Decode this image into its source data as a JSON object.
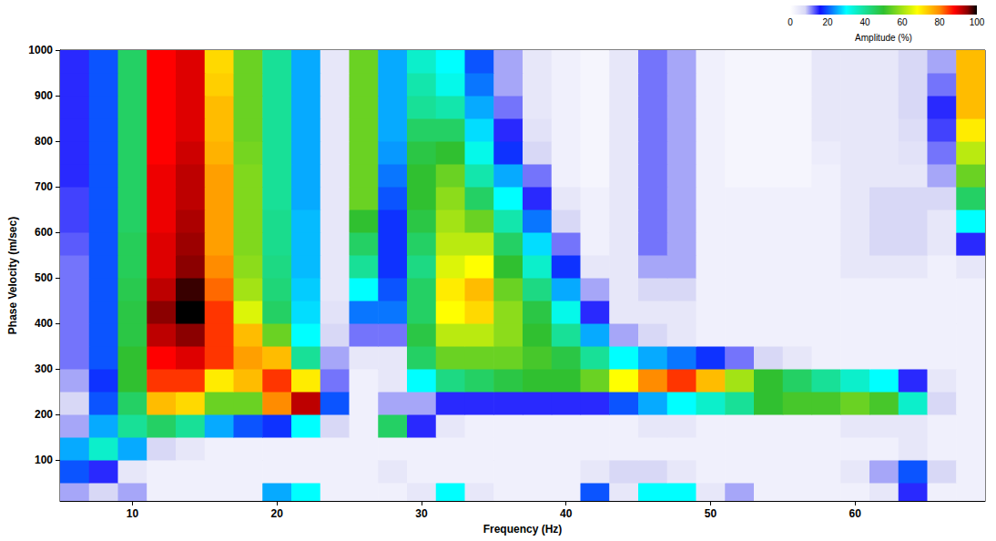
{
  "chart_data": {
    "type": "heatmap",
    "x_label": "Frequency (Hz)",
    "y_label": "Phase Velocity (m/sec)",
    "x": [
      6,
      8,
      10,
      12,
      14,
      16,
      18,
      20,
      22,
      24,
      26,
      28,
      30,
      32,
      34,
      36,
      38,
      40,
      42,
      44,
      46,
      48,
      50,
      52,
      54,
      56,
      58,
      60,
      62,
      64,
      66,
      68
    ],
    "y": [
      25,
      75,
      125,
      175,
      225,
      275,
      325,
      375,
      425,
      475,
      525,
      575,
      625,
      675,
      725,
      775,
      825,
      875,
      925,
      975
    ],
    "values": [
      [
        10,
        8,
        10,
        3,
        3,
        3,
        3,
        25,
        30,
        3,
        3,
        3,
        5,
        30,
        5,
        3,
        3,
        3,
        20,
        5,
        30,
        30,
        5,
        10,
        3,
        3,
        3,
        3,
        5,
        15,
        3,
        3
      ],
      [
        20,
        15,
        5,
        3,
        3,
        3,
        3,
        3,
        3,
        3,
        3,
        5,
        3,
        3,
        3,
        3,
        3,
        3,
        5,
        8,
        8,
        5,
        3,
        3,
        3,
        3,
        3,
        5,
        10,
        20,
        8,
        3
      ],
      [
        25,
        35,
        25,
        8,
        5,
        3,
        3,
        3,
        3,
        3,
        3,
        3,
        3,
        3,
        3,
        3,
        3,
        3,
        3,
        3,
        3,
        3,
        3,
        3,
        3,
        3,
        3,
        3,
        3,
        5,
        3,
        3
      ],
      [
        10,
        25,
        40,
        45,
        40,
        25,
        20,
        18,
        30,
        8,
        3,
        45,
        15,
        5,
        3,
        3,
        3,
        3,
        3,
        3,
        5,
        5,
        3,
        3,
        3,
        3,
        3,
        5,
        5,
        5,
        3,
        3
      ],
      [
        8,
        20,
        45,
        75,
        72,
        55,
        55,
        80,
        92,
        20,
        3,
        10,
        10,
        15,
        15,
        15,
        15,
        15,
        15,
        20,
        25,
        30,
        35,
        40,
        50,
        52,
        52,
        55,
        52,
        35,
        8,
        3
      ],
      [
        10,
        18,
        50,
        85,
        85,
        70,
        75,
        85,
        70,
        12,
        3,
        5,
        30,
        42,
        45,
        48,
        50,
        50,
        55,
        68,
        80,
        85,
        75,
        60,
        50,
        45,
        40,
        35,
        30,
        15,
        5,
        3
      ],
      [
        12,
        20,
        50,
        88,
        90,
        85,
        78,
        75,
        40,
        10,
        5,
        5,
        45,
        55,
        55,
        55,
        52,
        48,
        40,
        30,
        25,
        22,
        18,
        12,
        8,
        5,
        3,
        3,
        3,
        3,
        3,
        3
      ],
      [
        12,
        20,
        48,
        92,
        95,
        85,
        75,
        55,
        30,
        8,
        12,
        12,
        48,
        62,
        62,
        58,
        50,
        40,
        25,
        10,
        8,
        5,
        3,
        3,
        3,
        3,
        3,
        3,
        3,
        3,
        3,
        3
      ],
      [
        12,
        20,
        48,
        95,
        100,
        85,
        65,
        45,
        28,
        6,
        22,
        22,
        45,
        68,
        72,
        58,
        48,
        32,
        15,
        5,
        5,
        5,
        3,
        3,
        3,
        3,
        3,
        3,
        3,
        3,
        3,
        3
      ],
      [
        12,
        20,
        47,
        92,
        98,
        82,
        60,
        43,
        27,
        5,
        30,
        20,
        45,
        70,
        75,
        55,
        42,
        25,
        10,
        5,
        8,
        8,
        3,
        3,
        3,
        3,
        3,
        3,
        3,
        3,
        3,
        3
      ],
      [
        12,
        20,
        46,
        90,
        95,
        80,
        58,
        42,
        26,
        5,
        40,
        18,
        42,
        65,
        68,
        50,
        35,
        18,
        5,
        5,
        10,
        10,
        3,
        3,
        3,
        3,
        3,
        5,
        5,
        5,
        3,
        5
      ],
      [
        13,
        20,
        46,
        90,
        94,
        78,
        57,
        41,
        26,
        5,
        45,
        18,
        45,
        62,
        62,
        45,
        28,
        12,
        3,
        5,
        12,
        10,
        3,
        3,
        3,
        3,
        3,
        5,
        8,
        8,
        5,
        15
      ],
      [
        14,
        20,
        45,
        89,
        93,
        78,
        57,
        41,
        26,
        5,
        50,
        18,
        48,
        60,
        55,
        38,
        22,
        8,
        3,
        5,
        12,
        10,
        3,
        3,
        3,
        3,
        3,
        5,
        8,
        8,
        5,
        30
      ],
      [
        14,
        20,
        45,
        89,
        92,
        78,
        57,
        40,
        25,
        5,
        55,
        20,
        50,
        58,
        45,
        30,
        15,
        5,
        3,
        5,
        12,
        10,
        3,
        3,
        3,
        3,
        3,
        5,
        8,
        8,
        8,
        45
      ],
      [
        15,
        20,
        45,
        89,
        92,
        78,
        57,
        40,
        25,
        5,
        55,
        22,
        50,
        55,
        38,
        25,
        12,
        3,
        2,
        5,
        12,
        10,
        3,
        2,
        2,
        2,
        3,
        5,
        5,
        5,
        10,
        55
      ],
      [
        15,
        20,
        45,
        88,
        91,
        76,
        56,
        40,
        25,
        5,
        55,
        24,
        48,
        50,
        32,
        18,
        8,
        3,
        2,
        5,
        12,
        10,
        3,
        2,
        2,
        2,
        4,
        5,
        5,
        6,
        12,
        62
      ],
      [
        15,
        20,
        45,
        88,
        90,
        75,
        55,
        40,
        25,
        5,
        55,
        25,
        45,
        45,
        28,
        15,
        6,
        3,
        2,
        5,
        12,
        10,
        3,
        2,
        2,
        2,
        5,
        5,
        5,
        7,
        14,
        70
      ],
      [
        15,
        20,
        45,
        88,
        90,
        75,
        55,
        40,
        25,
        5,
        55,
        25,
        40,
        38,
        25,
        12,
        5,
        3,
        2,
        5,
        12,
        10,
        3,
        2,
        2,
        2,
        5,
        5,
        5,
        8,
        15,
        75
      ],
      [
        15,
        20,
        45,
        88,
        90,
        73,
        55,
        40,
        25,
        5,
        55,
        25,
        38,
        32,
        22,
        10,
        5,
        3,
        2,
        5,
        12,
        10,
        3,
        2,
        2,
        2,
        5,
        5,
        5,
        8,
        12,
        75
      ],
      [
        15,
        20,
        45,
        88,
        90,
        72,
        55,
        40,
        25,
        5,
        55,
        25,
        35,
        30,
        20,
        10,
        5,
        3,
        2,
        5,
        12,
        10,
        3,
        2,
        2,
        2,
        5,
        5,
        5,
        8,
        10,
        75
      ]
    ],
    "xlim": [
      5,
      69
    ],
    "ylim": [
      10,
      1000
    ],
    "xticks": [
      10,
      20,
      30,
      40,
      50,
      60
    ],
    "yticks": [
      100,
      200,
      300,
      400,
      500,
      600,
      700,
      800,
      900,
      1000
    ],
    "grid": true,
    "colorbar": {
      "label": "Amplitude (%)",
      "range": [
        0,
        100
      ],
      "ticks": [
        0,
        20,
        40,
        60,
        80,
        100
      ]
    }
  }
}
